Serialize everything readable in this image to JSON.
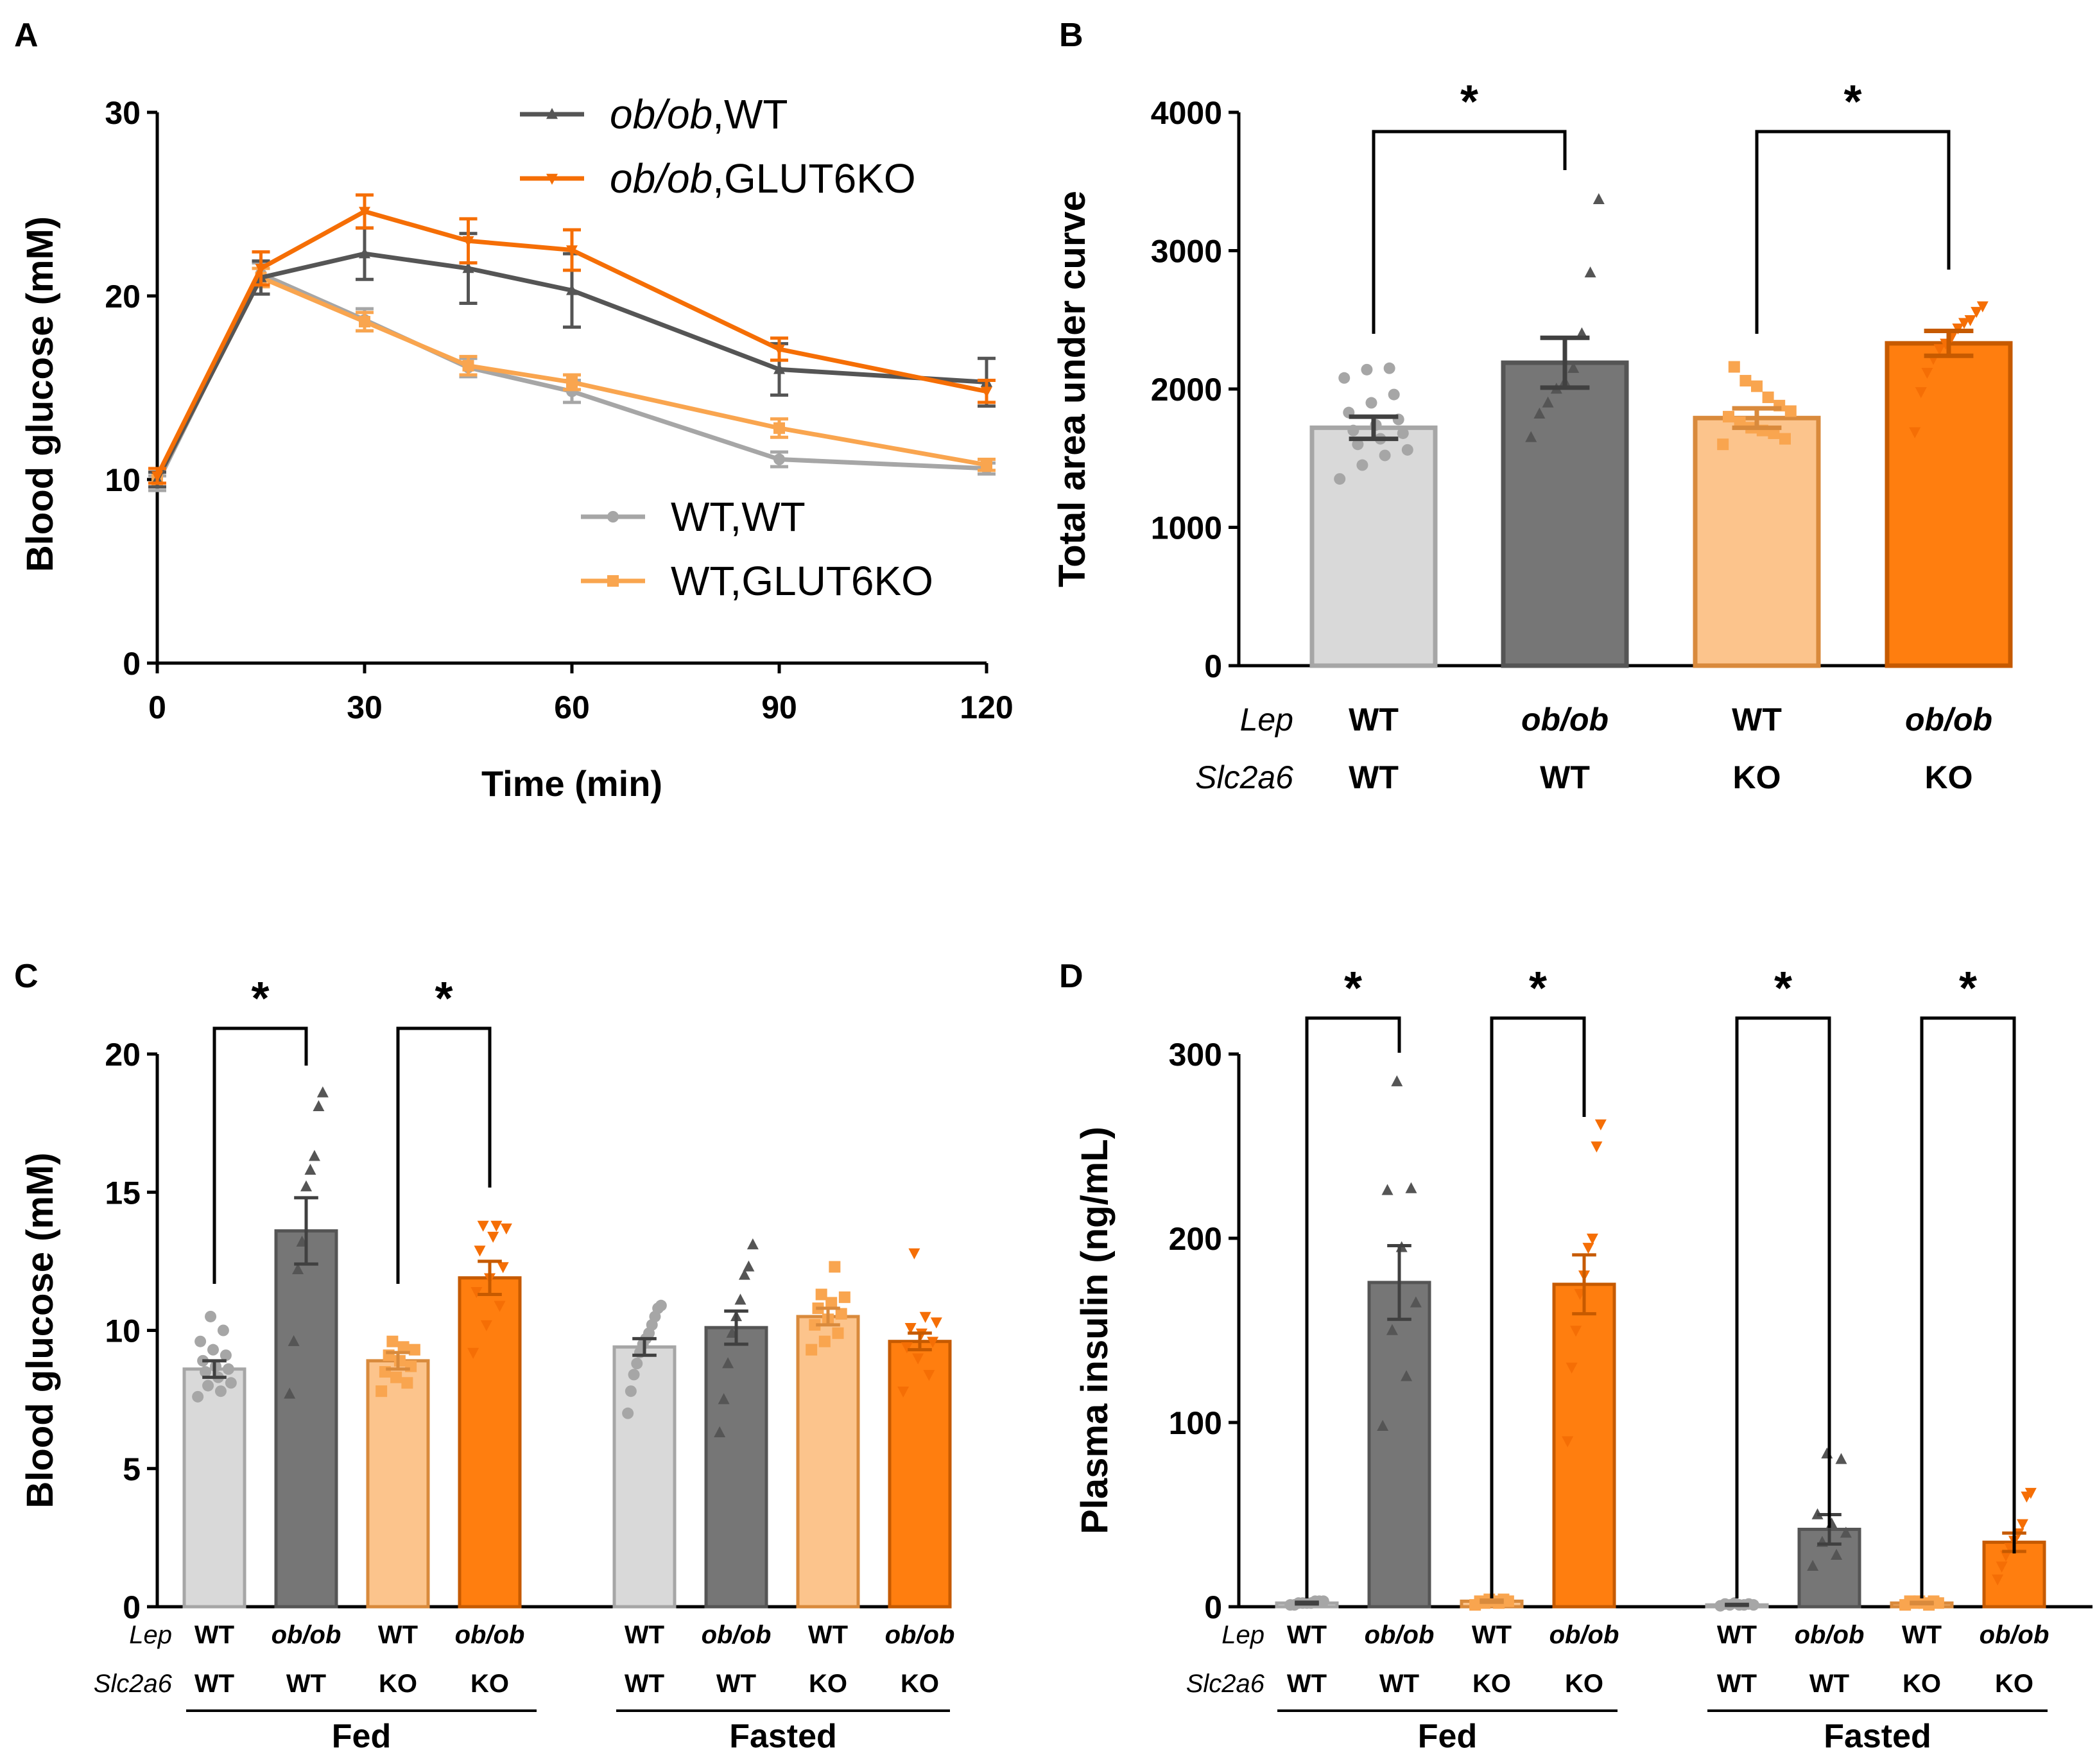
{
  "colors": {
    "wt_wt": "#a6a6a6",
    "wt_wt_fill": "#d9d9d9",
    "ob_wt": "#555555",
    "ob_wt_fill": "#767676",
    "wt_ko": "#f9a54f",
    "wt_ko_fill": "#fcc48c",
    "ob_ko": "#f56e05",
    "ob_ko_fill": "#ff7e0f",
    "ob_ko_dark": "#c65a00",
    "wt_ko_dark": "#d98a3c",
    "axis": "#000000"
  },
  "chart_data": [
    {
      "panel": "A",
      "type": "line",
      "xlabel": "Time (min)",
      "ylabel": "Blood glucose (mM)",
      "xlim": [
        0,
        120
      ],
      "ylim": [
        0,
        30
      ],
      "xticks": [
        0,
        30,
        60,
        90,
        120
      ],
      "xtick_labels": [
        "0",
        "30",
        "60",
        "90",
        "120"
      ],
      "yticks": [
        0,
        10,
        20,
        30
      ],
      "ytick_labels": [
        "0",
        "10",
        "20",
        "30"
      ],
      "x": [
        0,
        15,
        30,
        45,
        60,
        90,
        120
      ],
      "series": [
        {
          "key": "ob_wt",
          "name_it": "ob/ob",
          "name_rest": ",WT",
          "values": [
            10.0,
            21.0,
            22.3,
            21.5,
            20.3,
            16.0,
            15.3
          ],
          "err": [
            0.4,
            0.9,
            1.4,
            1.9,
            2.0,
            1.4,
            1.3
          ],
          "marker": "triangle"
        },
        {
          "key": "ob_ko",
          "name_it": "ob/ob",
          "name_rest": ",GLUT6KO",
          "values": [
            10.2,
            21.5,
            24.6,
            23.0,
            22.5,
            17.1,
            14.8
          ],
          "err": [
            0.4,
            0.9,
            0.9,
            1.2,
            1.1,
            0.6,
            0.6
          ],
          "marker": "invtriangle"
        },
        {
          "key": "wt_wt",
          "name": "WT,WT",
          "values": [
            9.8,
            21.2,
            18.7,
            16.1,
            14.8,
            11.1,
            10.6
          ],
          "err": [
            0.4,
            0.6,
            0.6,
            0.5,
            0.6,
            0.4,
            0.3
          ],
          "marker": "circle"
        },
        {
          "key": "wt_ko",
          "name": "WT,GLUT6KO",
          "values": [
            10.0,
            21.0,
            18.6,
            16.2,
            15.3,
            12.8,
            10.8
          ],
          "err": [
            0.4,
            0.5,
            0.5,
            0.5,
            0.4,
            0.5,
            0.3
          ],
          "marker": "square"
        }
      ]
    },
    {
      "panel": "B",
      "type": "bar",
      "ylabel": "Total area under curve",
      "ylim": [
        0,
        4000
      ],
      "yticks": [
        0,
        1000,
        2000,
        3000,
        4000
      ],
      "ytick_labels": [
        "0",
        "1000",
        "2000",
        "3000",
        "4000"
      ],
      "row_labels": [
        "Lep",
        "Slc2a6"
      ],
      "groups": [
        {
          "key": "wt_wt",
          "lep": "WT",
          "slc": "WT",
          "value": 1720,
          "err": 80,
          "points": [
            1350,
            1450,
            1520,
            1560,
            1600,
            1640,
            1680,
            1700,
            1740,
            1780,
            1830,
            1900,
            1960,
            2080,
            2140,
            2150
          ]
        },
        {
          "key": "ob_wt",
          "lep": "ob/ob",
          "slc": "WT",
          "value": 2190,
          "err": 180,
          "points": [
            1650,
            1820,
            1900,
            2000,
            2050,
            2150,
            2400,
            2840,
            3370
          ]
        },
        {
          "key": "wt_ko",
          "lep": "WT",
          "slc": "KO",
          "value": 1790,
          "err": 70,
          "points": [
            1600,
            1640,
            1680,
            1700,
            1720,
            1760,
            1800,
            1840,
            1880,
            1940,
            2020,
            2060,
            2160
          ]
        },
        {
          "key": "ob_ko",
          "lep": "ob/ob",
          "slc": "KO",
          "value": 2330,
          "err": 90,
          "points": [
            1690,
            1980,
            2120,
            2220,
            2290,
            2330,
            2380,
            2440,
            2480,
            2500,
            2560,
            2600
          ]
        }
      ],
      "significance": [
        {
          "from": 0,
          "to": 1,
          "label": "*"
        },
        {
          "from": 2,
          "to": 3,
          "label": "*"
        }
      ]
    },
    {
      "panel": "C",
      "type": "bar",
      "ylabel": "Blood glucose (mM)",
      "ylim": [
        0,
        20
      ],
      "yticks": [
        0,
        5,
        10,
        15,
        20
      ],
      "ytick_labels": [
        "0",
        "5",
        "10",
        "15",
        "20"
      ],
      "row_labels": [
        "Lep",
        "Slc2a6"
      ],
      "conditions": [
        "Fed",
        "Fasted"
      ],
      "groups": [
        {
          "key": "wt_wt",
          "cond": "Fed",
          "lep": "WT",
          "slc": "WT",
          "value": 8.6,
          "err": 0.3,
          "points": [
            7.6,
            7.8,
            8.0,
            8.1,
            8.3,
            8.5,
            8.6,
            8.7,
            8.9,
            9.1,
            9.3,
            9.6,
            10.0,
            10.5
          ]
        },
        {
          "key": "ob_wt",
          "cond": "Fed",
          "lep": "ob/ob",
          "slc": "WT",
          "value": 13.6,
          "err": 1.2,
          "points": [
            7.7,
            9.6,
            12.2,
            13.2,
            15.2,
            15.8,
            16.3,
            18.1,
            18.6
          ]
        },
        {
          "key": "wt_ko",
          "cond": "Fed",
          "lep": "WT",
          "slc": "KO",
          "value": 8.9,
          "err": 0.3,
          "points": [
            7.8,
            8.1,
            8.3,
            8.5,
            8.7,
            8.9,
            9.1,
            9.3,
            9.4,
            9.6
          ]
        },
        {
          "key": "ob_ko",
          "cond": "Fed",
          "lep": "ob/ob",
          "slc": "KO",
          "value": 11.9,
          "err": 0.6,
          "points": [
            9.2,
            10.2,
            10.9,
            11.4,
            11.9,
            12.3,
            12.9,
            13.4,
            13.7,
            13.8,
            13.8
          ]
        },
        {
          "key": "wt_wt",
          "cond": "Fasted",
          "lep": "WT",
          "slc": "WT",
          "value": 9.4,
          "err": 0.3,
          "points": [
            7.0,
            7.8,
            8.4,
            8.8,
            9.2,
            9.5,
            9.7,
            9.9,
            10.2,
            10.5,
            10.8,
            10.9
          ]
        },
        {
          "key": "ob_wt",
          "cond": "Fasted",
          "lep": "ob/ob",
          "slc": "WT",
          "value": 10.1,
          "err": 0.6,
          "points": [
            6.3,
            7.5,
            8.8,
            9.9,
            10.5,
            11.1,
            12.0,
            12.3,
            13.1
          ]
        },
        {
          "key": "wt_ko",
          "cond": "Fasted",
          "lep": "WT",
          "slc": "KO",
          "value": 10.5,
          "err": 0.3,
          "points": [
            9.3,
            9.6,
            9.9,
            10.2,
            10.4,
            10.6,
            10.8,
            11.0,
            11.2,
            11.3,
            12.3
          ]
        },
        {
          "key": "ob_ko",
          "cond": "Fasted",
          "lep": "ob/ob",
          "slc": "KO",
          "value": 9.6,
          "err": 0.3,
          "points": [
            7.8,
            8.4,
            9.0,
            9.4,
            9.6,
            9.9,
            10.1,
            10.3,
            10.5,
            12.8
          ]
        }
      ],
      "significance": [
        {
          "from": 0,
          "to": 1,
          "label": "*"
        },
        {
          "from": 2,
          "to": 3,
          "label": "*"
        }
      ]
    },
    {
      "panel": "D",
      "type": "bar",
      "ylabel": "Plasma insulin (ng/mL)",
      "ylim": [
        0,
        300
      ],
      "yticks": [
        0,
        100,
        200,
        300
      ],
      "ytick_labels": [
        "0",
        "100",
        "200",
        "300"
      ],
      "row_labels": [
        "Lep",
        "Slc2a6"
      ],
      "conditions": [
        "Fed",
        "Fasted"
      ],
      "groups": [
        {
          "key": "wt_wt",
          "cond": "Fed",
          "lep": "WT",
          "slc": "WT",
          "value": 2,
          "err": 0.5,
          "points": [
            1,
            1,
            2,
            2,
            2,
            2,
            3,
            3,
            3
          ]
        },
        {
          "key": "ob_wt",
          "cond": "Fed",
          "lep": "ob/ob",
          "slc": "WT",
          "value": 176,
          "err": 20,
          "points": [
            98,
            125,
            150,
            165,
            195,
            226,
            227,
            285
          ]
        },
        {
          "key": "wt_ko",
          "cond": "Fed",
          "lep": "WT",
          "slc": "KO",
          "value": 3,
          "err": 0.6,
          "points": [
            1,
            2,
            2,
            3,
            3,
            3,
            4,
            4
          ]
        },
        {
          "key": "ob_ko",
          "cond": "Fed",
          "lep": "ob/ob",
          "slc": "KO",
          "value": 175,
          "err": 16,
          "points": [
            90,
            130,
            150,
            170,
            180,
            195,
            200,
            250,
            262
          ]
        },
        {
          "key": "wt_wt",
          "cond": "Fasted",
          "lep": "WT",
          "slc": "WT",
          "value": 1,
          "err": 0.3,
          "points": [
            0.5,
            1,
            1,
            1,
            1,
            1.5,
            1.5,
            2
          ]
        },
        {
          "key": "ob_wt",
          "cond": "Fasted",
          "lep": "ob/ob",
          "slc": "WT",
          "value": 42,
          "err": 8,
          "points": [
            22,
            28,
            35,
            40,
            45,
            50,
            80,
            83
          ]
        },
        {
          "key": "wt_ko",
          "cond": "Fasted",
          "lep": "WT",
          "slc": "KO",
          "value": 2,
          "err": 0.4,
          "points": [
            1,
            1,
            2,
            2,
            2,
            3,
            3,
            3
          ]
        },
        {
          "key": "ob_ko",
          "cond": "Fasted",
          "lep": "ob/ob",
          "slc": "KO",
          "value": 35,
          "err": 5,
          "points": [
            15,
            22,
            28,
            32,
            36,
            40,
            45,
            60,
            62
          ]
        }
      ],
      "significance": [
        {
          "from": 0,
          "to": 1,
          "label": "*"
        },
        {
          "from": 2,
          "to": 3,
          "label": "*"
        },
        {
          "from": 4,
          "to": 5,
          "label": "*"
        },
        {
          "from": 6,
          "to": 7,
          "label": "*"
        }
      ]
    }
  ]
}
